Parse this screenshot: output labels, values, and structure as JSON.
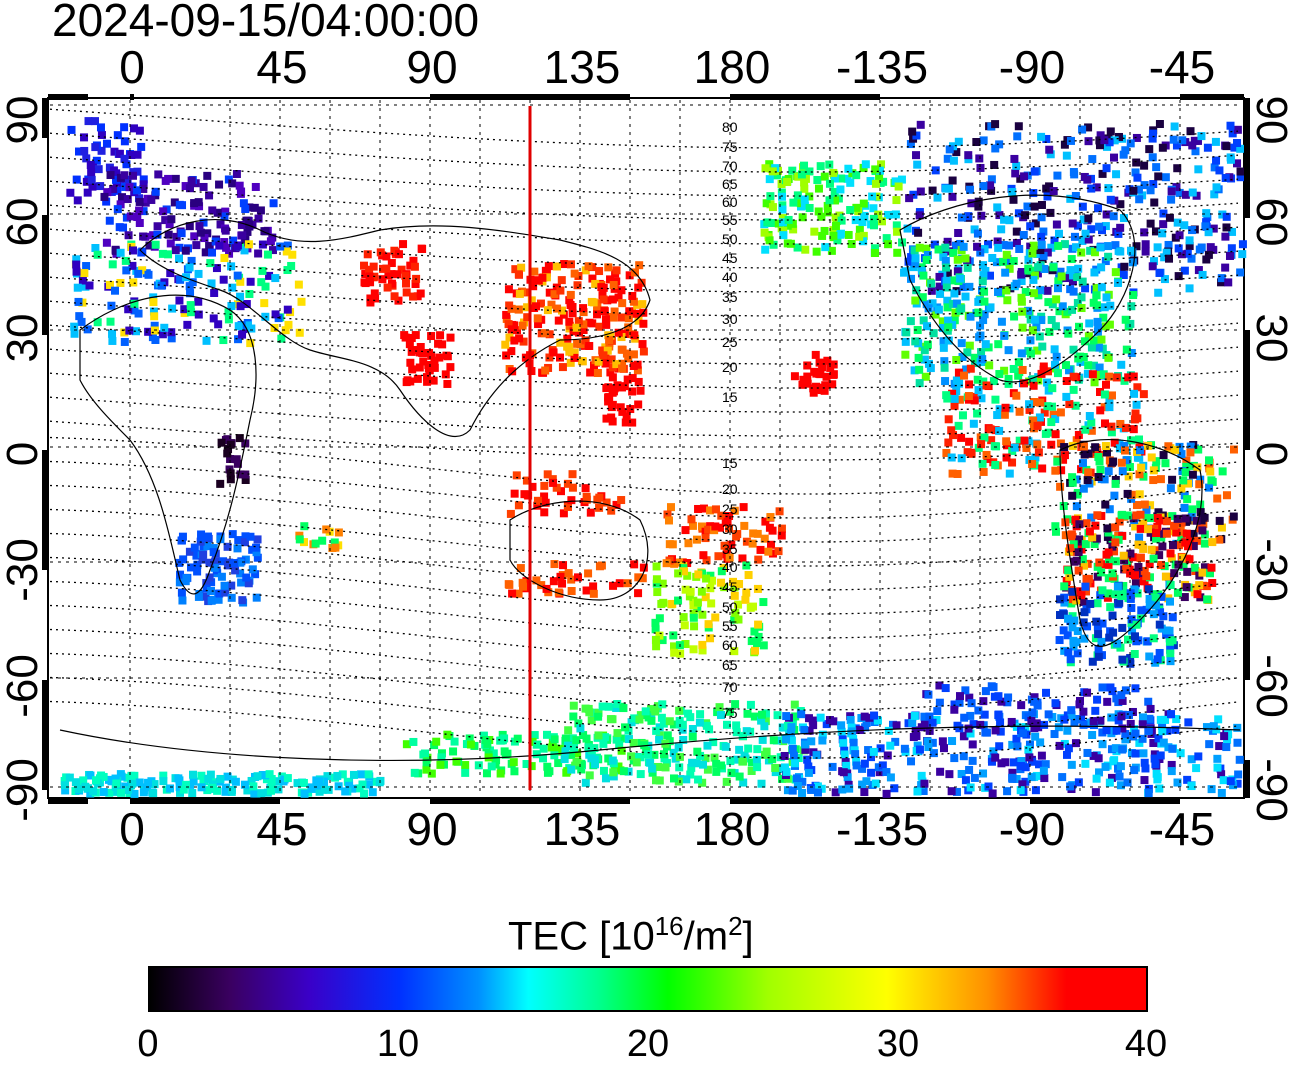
{
  "title": "2024-09-15/04:00:00",
  "axes": {
    "top_lon_ticks": [
      "0",
      "45",
      "90",
      "135",
      "180",
      "-135",
      "-90",
      "-45"
    ],
    "bottom_lon_ticks": [
      "0",
      "45",
      "90",
      "135",
      "180",
      "-135",
      "-90",
      "-45"
    ],
    "left_lat_ticks": [
      "90",
      "60",
      "30",
      "0",
      "-30",
      "-60",
      "-90"
    ],
    "right_lat_ticks": [
      "90",
      "60",
      "30",
      "0",
      "-30",
      "-60",
      "-90"
    ]
  },
  "contour_labels": [
    "80",
    "75",
    "70",
    "65",
    "60",
    "55",
    "50",
    "45",
    "40",
    "35",
    "30",
    "25",
    "20",
    "15",
    "15",
    "20",
    "25",
    "30",
    "35",
    "40",
    "45",
    "50",
    "55",
    "60",
    "65",
    "70",
    "75"
  ],
  "marker_line": {
    "longitude": 120,
    "color": "#e00000"
  },
  "colorbar": {
    "label": "TEC  [10",
    "label_exp": "16",
    "label_mid": "/m",
    "label_exp2": "2",
    "label_end": "]",
    "ticks": [
      "0",
      "10",
      "20",
      "30",
      "40"
    ],
    "min": 0,
    "max": 40
  },
  "colors": {
    "high": "#ff0000",
    "mid": "#00ff00",
    "low": "#0030ff",
    "none": "#000000"
  }
}
